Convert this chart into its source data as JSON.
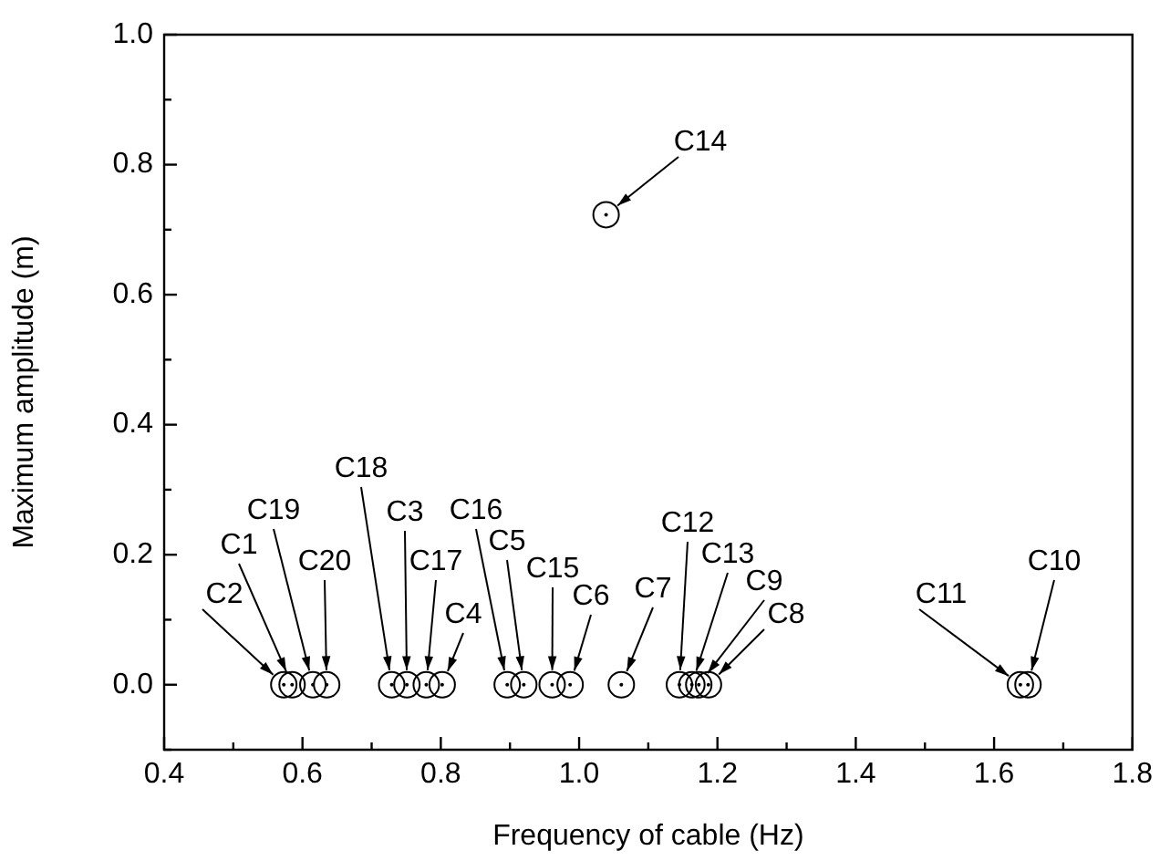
{
  "chart_data": {
    "type": "scatter",
    "xlabel": "Frequency of cable (Hz)",
    "ylabel": "Maximum amplitude (m)",
    "x": [
      0.573,
      0.585,
      0.615,
      0.635,
      0.729,
      0.751,
      0.779,
      0.802,
      0.896,
      0.92,
      0.961,
      0.987,
      1.061,
      1.145,
      1.163,
      1.173,
      1.187,
      1.638,
      1.649,
      1.039
    ],
    "values": [
      0,
      0,
      0,
      0,
      0,
      0,
      0,
      0,
      0,
      0,
      0,
      0,
      0,
      0,
      0,
      0,
      0,
      0,
      0,
      0.723
    ],
    "color": "#000000",
    "marker": "circle",
    "grid": false,
    "legend": false,
    "xlim": [
      0.4,
      1.8
    ],
    "xticks": [
      0.4,
      0.6,
      0.8,
      {
        "value": 1,
        "label": "1.0"
      },
      1.2,
      1.4,
      1.6,
      1.8
    ],
    "ylim": [
      -0.1,
      1.0
    ],
    "yticks": [
      {
        "value": 0,
        "label": "0.0"
      },
      0.2,
      0.4,
      0.6,
      0.8,
      {
        "value": 1,
        "label": "1.0"
      }
    ],
    "annotations": [
      {
        "text": "C2",
        "x": 0.573,
        "y": 0
      },
      {
        "text": "C1",
        "x": 0.585,
        "y": 0
      },
      {
        "text": "C19",
        "x": 0.615,
        "y": 0
      },
      {
        "text": "C20",
        "x": 0.635,
        "y": 0
      },
      {
        "text": "C18",
        "x": 0.729,
        "y": 0
      },
      {
        "text": "C3",
        "x": 0.751,
        "y": 0
      },
      {
        "text": "C17",
        "x": 0.779,
        "y": 0
      },
      {
        "text": "C4",
        "x": 0.802,
        "y": 0
      },
      {
        "text": "C16",
        "x": 0.896,
        "y": 0
      },
      {
        "text": "C5",
        "x": 0.92,
        "y": 0
      },
      {
        "text": "C15",
        "x": 0.961,
        "y": 0
      },
      {
        "text": "C6",
        "x": 0.987,
        "y": 0
      },
      {
        "text": "C7",
        "x": 1.061,
        "y": 0
      },
      {
        "text": "C12",
        "x": 1.145,
        "y": 0
      },
      {
        "text": "C13",
        "x": 1.163,
        "y": 0
      },
      {
        "text": "C9",
        "x": 1.173,
        "y": 0
      },
      {
        "text": "C8",
        "x": 1.187,
        "y": 0
      },
      {
        "text": "C11",
        "x": 1.638,
        "y": 0
      },
      {
        "text": "C10",
        "x": 1.649,
        "y": 0
      },
      {
        "text": "C14",
        "x": 1.039,
        "y": 0.723
      }
    ]
  }
}
